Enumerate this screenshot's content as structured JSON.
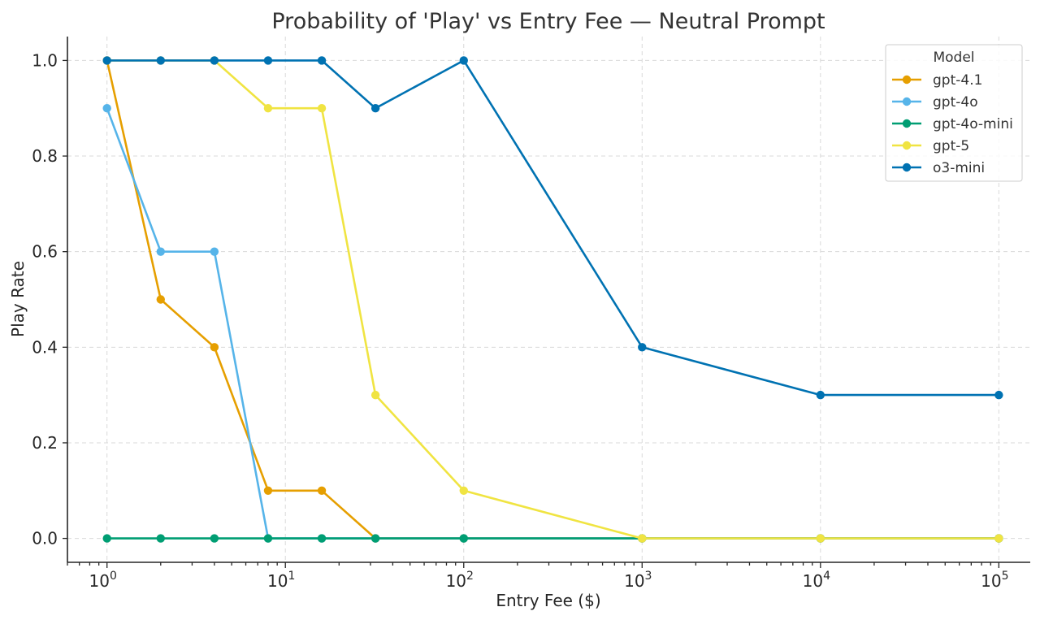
{
  "chart_data": {
    "type": "line",
    "title": "Probability of 'Play' vs Entry Fee — Neutral Prompt",
    "xlabel": "Entry Fee ($)",
    "ylabel": "Play Rate",
    "xscale": "log",
    "xlim": [
      0.6,
      150000
    ],
    "ylim": [
      -0.05,
      1.05
    ],
    "grid": true,
    "x_ticks": [
      {
        "value": 1,
        "base": "10",
        "exp": "0"
      },
      {
        "value": 10,
        "base": "10",
        "exp": "1"
      },
      {
        "value": 100,
        "base": "10",
        "exp": "2"
      },
      {
        "value": 1000,
        "base": "10",
        "exp": "3"
      },
      {
        "value": 10000,
        "base": "10",
        "exp": "4"
      },
      {
        "value": 100000,
        "base": "10",
        "exp": "5"
      }
    ],
    "y_ticks": [
      {
        "value": 0.0,
        "label": "0.0"
      },
      {
        "value": 0.2,
        "label": "0.2"
      },
      {
        "value": 0.4,
        "label": "0.4"
      },
      {
        "value": 0.6,
        "label": "0.6"
      },
      {
        "value": 0.8,
        "label": "0.8"
      },
      {
        "value": 1.0,
        "label": "1.0"
      }
    ],
    "legend": {
      "title": "Model",
      "position": "top-right"
    },
    "series": [
      {
        "name": "gpt-4.1",
        "color": "#E69F00",
        "x": [
          1,
          2,
          4,
          8,
          16,
          32,
          100,
          1000,
          10000,
          100000
        ],
        "y": [
          1.0,
          0.5,
          0.4,
          0.1,
          0.1,
          0.0,
          0.0,
          0.0,
          0.0,
          0.0
        ]
      },
      {
        "name": "gpt-4o",
        "color": "#56B4E9",
        "x": [
          1,
          2,
          4,
          8,
          16,
          32,
          100,
          1000,
          10000,
          100000
        ],
        "y": [
          0.9,
          0.6,
          0.6,
          0.0,
          0.0,
          0.0,
          0.0,
          0.0,
          0.0,
          0.0
        ]
      },
      {
        "name": "gpt-4o-mini",
        "color": "#009E73",
        "x": [
          1,
          2,
          4,
          8,
          16,
          32,
          100,
          1000,
          10000,
          100000
        ],
        "y": [
          0.0,
          0.0,
          0.0,
          0.0,
          0.0,
          0.0,
          0.0,
          0.0,
          0.0,
          0.0
        ]
      },
      {
        "name": "gpt-5",
        "color": "#F0E442",
        "x": [
          1,
          2,
          4,
          8,
          16,
          32,
          100,
          1000,
          10000,
          100000
        ],
        "y": [
          1.0,
          1.0,
          1.0,
          0.9,
          0.9,
          0.3,
          0.1,
          0.0,
          0.0,
          0.0
        ]
      },
      {
        "name": "o3-mini",
        "color": "#0072B2",
        "x": [
          1,
          2,
          4,
          8,
          16,
          32,
          100,
          1000,
          10000,
          100000
        ],
        "y": [
          1.0,
          1.0,
          1.0,
          1.0,
          1.0,
          0.9,
          1.0,
          0.4,
          0.3,
          0.3
        ]
      }
    ]
  }
}
